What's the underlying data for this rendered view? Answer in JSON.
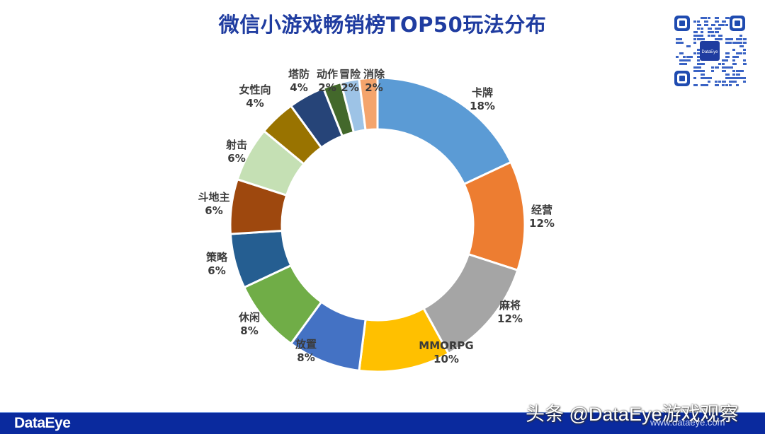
{
  "title": "微信小游戏畅销榜TOP50玩法分布",
  "chart_data": {
    "type": "pie",
    "subtype": "donut",
    "title": "微信小游戏畅销榜TOP50玩法分布",
    "start_angle_deg": 0,
    "direction": "clockwise",
    "legend": "none (data labels on slices)",
    "categories": [
      "卡牌",
      "经营",
      "麻将",
      "MMORPG",
      "放置",
      "休闲",
      "策略",
      "斗地主",
      "射击",
      "女性向",
      "塔防",
      "动作",
      "冒险",
      "消除"
    ],
    "values": [
      18,
      12,
      12,
      10,
      8,
      8,
      6,
      6,
      6,
      4,
      4,
      2,
      2,
      2
    ],
    "value_format": "percent",
    "colors": [
      "#5b9bd5",
      "#ed7d31",
      "#a5a5a5",
      "#ffc000",
      "#4472c4",
      "#70ad47",
      "#255e91",
      "#9e480e",
      "#c5e0b4",
      "#997300",
      "#264478",
      "#43682b",
      "#9dc3e6",
      "#f4a46c"
    ]
  },
  "labels": [
    {
      "name": "卡牌",
      "pct": "18%"
    },
    {
      "name": "经营",
      "pct": "12%"
    },
    {
      "name": "麻将",
      "pct": "12%"
    },
    {
      "name": "MMORPG",
      "pct": "10%"
    },
    {
      "name": "放置",
      "pct": "8%"
    },
    {
      "name": "休闲",
      "pct": "8%"
    },
    {
      "name": "策略",
      "pct": "6%"
    },
    {
      "name": "斗地主",
      "pct": "6%"
    },
    {
      "name": "射击",
      "pct": "6%"
    },
    {
      "name": "女性向",
      "pct": "4%"
    },
    {
      "name": "塔防",
      "pct": "4%"
    },
    {
      "name": "动作",
      "pct": "2%"
    },
    {
      "name": "冒险",
      "pct": "2%"
    },
    {
      "name": "消除",
      "pct": "2%"
    }
  ],
  "qr": {
    "center_text": "DataEye"
  },
  "footer": {
    "logo": "DataEye",
    "watermark": "头条 @DataEye游戏观察",
    "url": "www.dataeye.com"
  }
}
